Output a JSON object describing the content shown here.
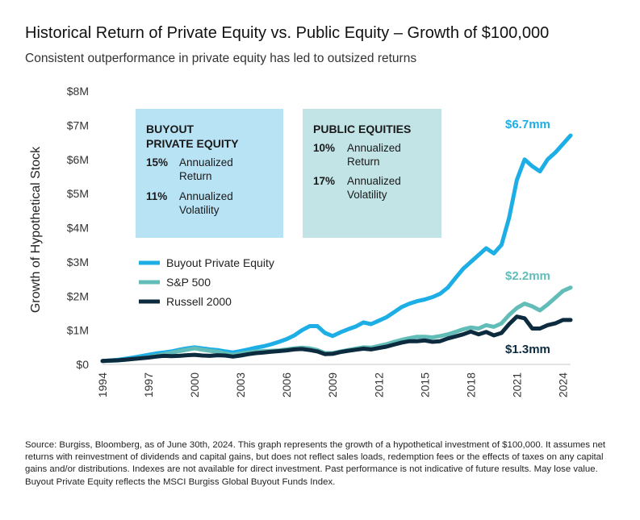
{
  "header": {
    "title": "Historical Return of Private Equity vs. Public Equity – Growth of $100,000",
    "subtitle": "Consistent outperformance in private equity has led to outsized returns"
  },
  "footer": {
    "source": "Source: Burgiss, Bloomberg, as of June 30th, 2024. This graph represents the growth of a hypothetical investment of $100,000. It assumes net returns with reinvestment of dividends and capital gains, but does not reflect sales loads, redemption fees or the effects of taxes on any capital gains and/or distributions. Indexes are not available for direct investment. Past performance is not indicative of future results. May lose value. Buyout Private Equity reflects the MSCI Burgiss Global Buyout Funds Index."
  },
  "colors": {
    "buyout": "#1eaee6",
    "sp500": "#62bdb8",
    "russell": "#0d2b3e",
    "box_buyout": "#b8e3f5",
    "box_public": "#c2e4e6",
    "gridline": "#c8c8c8"
  },
  "boxes": {
    "buyout": {
      "heading": [
        "BUYOUT",
        "PRIVATE EQUITY"
      ],
      "stats": [
        {
          "value": "15%",
          "label": [
            "Annualized",
            "Return"
          ]
        },
        {
          "value": "11%",
          "label": [
            "Annualized",
            "Volatility"
          ]
        }
      ]
    },
    "public": {
      "heading": [
        "PUBLIC EQUITIES"
      ],
      "stats": [
        {
          "value": "10%",
          "label": [
            "Annualized",
            "Return"
          ]
        },
        {
          "value": "17%",
          "label": [
            "Annualized",
            "Volatility"
          ]
        }
      ]
    }
  },
  "end_labels": {
    "buyout": "$6.7mm",
    "sp500": "$2.2mm",
    "russell": "$1.3mm"
  },
  "chart_data": {
    "type": "line",
    "title": "",
    "xlabel": "",
    "ylabel": "Growth of Hypothetical Stock",
    "xlim": [
      1994,
      2024.5
    ],
    "ylim": [
      0,
      8000000
    ],
    "x_ticks": [
      1994,
      1997,
      2000,
      2003,
      2006,
      2009,
      2012,
      2015,
      2018,
      2021,
      2024
    ],
    "y_ticks": [
      0,
      1000000,
      2000000,
      3000000,
      4000000,
      5000000,
      6000000,
      7000000,
      8000000
    ],
    "y_tick_labels": [
      "$0",
      "$1M",
      "$2M",
      "$3M",
      "$4M",
      "$5M",
      "$6M",
      "$7M",
      "$8M"
    ],
    "grid": "horizontal-bottom-only",
    "legend": "middle-left",
    "x": [
      1994,
      1994.5,
      1995,
      1995.5,
      1996,
      1996.5,
      1997,
      1997.5,
      1998,
      1998.5,
      1999,
      1999.5,
      2000,
      2000.5,
      2001,
      2001.5,
      2002,
      2002.5,
      2003,
      2003.5,
      2004,
      2004.5,
      2005,
      2005.5,
      2006,
      2006.5,
      2007,
      2007.5,
      2008,
      2008.5,
      2009,
      2009.5,
      2010,
      2010.5,
      2011,
      2011.5,
      2012,
      2012.5,
      2013,
      2013.5,
      2014,
      2014.5,
      2015,
      2015.5,
      2016,
      2016.5,
      2017,
      2017.5,
      2018,
      2018.5,
      2019,
      2019.5,
      2020,
      2020.5,
      2021,
      2021.5,
      2022,
      2022.5,
      2023,
      2023.5,
      2024,
      2024.5
    ],
    "series": [
      {
        "name": "Buyout Private Equity",
        "values": [
          100000,
          115000,
          135000,
          165000,
          200000,
          240000,
          280000,
          320000,
          350000,
          380000,
          430000,
          470000,
          500000,
          470000,
          440000,
          420000,
          380000,
          350000,
          390000,
          440000,
          490000,
          530000,
          590000,
          660000,
          740000,
          850000,
          1000000,
          1120000,
          1120000,
          920000,
          830000,
          940000,
          1030000,
          1110000,
          1230000,
          1180000,
          1280000,
          1380000,
          1530000,
          1680000,
          1780000,
          1850000,
          1900000,
          1970000,
          2070000,
          2250000,
          2530000,
          2800000,
          3000000,
          3200000,
          3400000,
          3250000,
          3500000,
          4300000,
          5400000,
          6000000,
          5800000,
          5650000,
          6000000,
          6200000,
          6450000,
          6700000
        ],
        "end_label": "$6.7mm"
      },
      {
        "name": "S&P 500",
        "values": [
          100000,
          105000,
          115000,
          135000,
          160000,
          185000,
          215000,
          255000,
          300000,
          340000,
          390000,
          430000,
          470000,
          430000,
          400000,
          370000,
          320000,
          280000,
          320000,
          350000,
          380000,
          390000,
          400000,
          410000,
          440000,
          470000,
          490000,
          470000,
          420000,
          330000,
          330000,
          380000,
          420000,
          460000,
          500000,
          490000,
          540000,
          590000,
          660000,
          720000,
          770000,
          810000,
          810000,
          790000,
          830000,
          880000,
          950000,
          1030000,
          1080000,
          1050000,
          1150000,
          1100000,
          1200000,
          1450000,
          1650000,
          1780000,
          1700000,
          1580000,
          1750000,
          1950000,
          2150000,
          2250000
        ],
        "end_label": "$2.2mm"
      },
      {
        "name": "Russell 2000",
        "values": [
          100000,
          110000,
          120000,
          140000,
          160000,
          180000,
          200000,
          230000,
          250000,
          240000,
          250000,
          270000,
          280000,
          260000,
          250000,
          270000,
          260000,
          230000,
          260000,
          300000,
          330000,
          350000,
          370000,
          390000,
          410000,
          440000,
          450000,
          420000,
          380000,
          300000,
          310000,
          360000,
          400000,
          430000,
          460000,
          440000,
          480000,
          520000,
          580000,
          640000,
          680000,
          680000,
          700000,
          660000,
          680000,
          760000,
          820000,
          880000,
          960000,
          880000,
          950000,
          850000,
          920000,
          1180000,
          1400000,
          1350000,
          1050000,
          1050000,
          1150000,
          1200000,
          1300000,
          1300000
        ],
        "end_label": "$1.3mm"
      }
    ]
  }
}
